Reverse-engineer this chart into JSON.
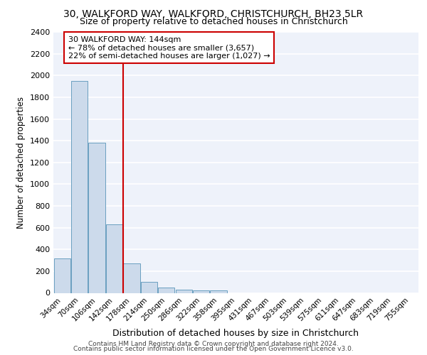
{
  "title_line1": "30, WALKFORD WAY, WALKFORD, CHRISTCHURCH, BH23 5LR",
  "title_line2": "Size of property relative to detached houses in Christchurch",
  "xlabel": "Distribution of detached houses by size in Christchurch",
  "ylabel": "Number of detached properties",
  "footer_line1": "Contains HM Land Registry data © Crown copyright and database right 2024.",
  "footer_line2": "Contains public sector information licensed under the Open Government Licence v3.0.",
  "annotation_line1": "30 WALKFORD WAY: 144sqm",
  "annotation_line2": "← 78% of detached houses are smaller (3,657)",
  "annotation_line3": "22% of semi-detached houses are larger (1,027) →",
  "bar_color": "#ccdaeb",
  "bar_edge_color": "#6a9fc0",
  "vline_color": "#cc0000",
  "annotation_box_edgecolor": "#cc0000",
  "background_color": "#eef2fa",
  "grid_color": "#ffffff",
  "categories": [
    "34sqm",
    "70sqm",
    "106sqm",
    "142sqm",
    "178sqm",
    "214sqm",
    "250sqm",
    "286sqm",
    "322sqm",
    "358sqm",
    "395sqm",
    "431sqm",
    "467sqm",
    "503sqm",
    "539sqm",
    "575sqm",
    "611sqm",
    "647sqm",
    "683sqm",
    "719sqm",
    "755sqm"
  ],
  "values": [
    315,
    1950,
    1380,
    630,
    270,
    100,
    48,
    32,
    25,
    20,
    0,
    0,
    0,
    0,
    0,
    0,
    0,
    0,
    0,
    0,
    0
  ],
  "vline_x_index": 3.5,
  "ylim": [
    0,
    2400
  ],
  "yticks": [
    0,
    200,
    400,
    600,
    800,
    1000,
    1200,
    1400,
    1600,
    1800,
    2000,
    2200,
    2400
  ],
  "title1_fontsize": 10,
  "title2_fontsize": 9,
  "ylabel_fontsize": 8.5,
  "xlabel_fontsize": 9,
  "tick_fontsize": 8,
  "xtick_fontsize": 7.5,
  "footer_fontsize": 6.5,
  "annot_fontsize": 8
}
